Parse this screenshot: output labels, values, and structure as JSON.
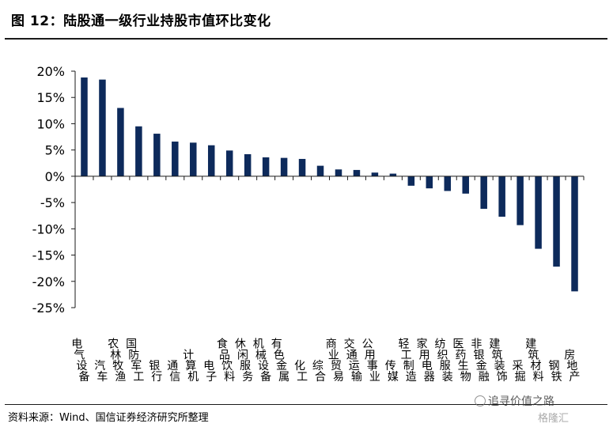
{
  "title": "图 12：陆股通一级行业持股市值环比变化",
  "source": "资料来源：Wind、国信证券经济研究所整理",
  "watermark": "追寻价值之路",
  "watermark_mark": "格隆汇",
  "colors": {
    "bar": "#0d2a5b",
    "axis": "#1a1a1a"
  },
  "chart_data": {
    "type": "bar",
    "title": "",
    "xlabel": "",
    "ylabel": "",
    "ylim": [
      -25,
      20
    ],
    "yticks": [
      20,
      15,
      10,
      5,
      0,
      -5,
      -10,
      -15,
      -20,
      -25
    ],
    "ytick_labels": [
      "20%",
      "15%",
      "10%",
      "5%",
      "0%",
      "-5%",
      "-10%",
      "-15%",
      "-20%",
      "-25%"
    ],
    "grid": false,
    "categories": [
      "电气设备",
      "汽车",
      "农林牧渔",
      "国防军工",
      "银行",
      "通信",
      "计算机",
      "电子",
      "食品饮料",
      "休闲服务",
      "机械设备",
      "有色金属",
      "化工",
      "综合",
      "商业贸易",
      "交通运输",
      "公用事业",
      "传媒",
      "轻工制造",
      "家用电器",
      "纺织服装",
      "医药生物",
      "非银金融",
      "建筑装饰",
      "采掘",
      "建筑材料",
      "钢铁",
      "房地产"
    ],
    "values": [
      18.8,
      18.4,
      13.0,
      9.5,
      8.1,
      6.6,
      6.4,
      5.9,
      4.9,
      4.2,
      3.6,
      3.5,
      3.3,
      2.0,
      1.3,
      1.2,
      0.7,
      0.5,
      -1.8,
      -2.3,
      -2.8,
      -3.3,
      -6.2,
      -7.7,
      -9.3,
      -13.8,
      -17.2,
      -21.9
    ]
  }
}
